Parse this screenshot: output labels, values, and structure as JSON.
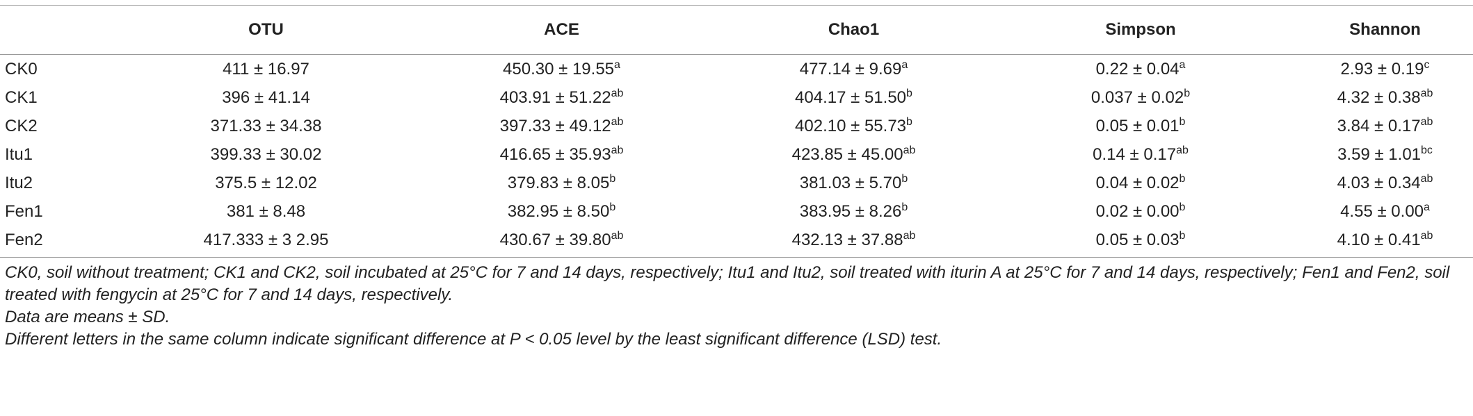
{
  "table": {
    "columns": [
      "OTU",
      "ACE",
      "Chao1",
      "Simpson",
      "Shannon"
    ],
    "rows": [
      {
        "label": "CK0",
        "cells": [
          "411 ± 16.97",
          {
            "text": "450.30 ± 19.55",
            "sup": "a"
          },
          {
            "text": "477.14 ± 9.69",
            "sup": "a"
          },
          {
            "text": "0.22 ± 0.04",
            "sup": "a"
          },
          {
            "text": "2.93 ± 0.19",
            "sup": "c"
          }
        ]
      },
      {
        "label": "CK1",
        "cells": [
          "396 ± 41.14",
          {
            "text": "403.91 ± 51.22",
            "sup": "ab"
          },
          {
            "text": "404.17 ± 51.50",
            "sup": "b"
          },
          {
            "text": "0.037 ± 0.02",
            "sup": "b"
          },
          {
            "text": "4.32 ± 0.38",
            "sup": "ab"
          }
        ]
      },
      {
        "label": "CK2",
        "cells": [
          "371.33 ± 34.38",
          {
            "text": "397.33 ± 49.12",
            "sup": "ab"
          },
          {
            "text": "402.10 ± 55.73",
            "sup": "b"
          },
          {
            "text": "0.05 ± 0.01",
            "sup": "b"
          },
          {
            "text": "3.84 ± 0.17",
            "sup": "ab"
          }
        ]
      },
      {
        "label": "Itu1",
        "cells": [
          "399.33 ± 30.02",
          {
            "text": "416.65 ± 35.93",
            "sup": "ab"
          },
          {
            "text": "423.85 ± 45.00",
            "sup": "ab"
          },
          {
            "text": "0.14 ± 0.17",
            "sup": "ab"
          },
          {
            "text": "3.59 ± 1.01",
            "sup": "bc"
          }
        ]
      },
      {
        "label": "Itu2",
        "cells": [
          "375.5 ± 12.02",
          {
            "text": "379.83 ± 8.05",
            "sup": "b"
          },
          {
            "text": "381.03 ± 5.70",
            "sup": "b"
          },
          {
            "text": "0.04 ± 0.02",
            "sup": "b"
          },
          {
            "text": "4.03 ± 0.34",
            "sup": "ab"
          }
        ]
      },
      {
        "label": "Fen1",
        "cells": [
          "381 ± 8.48",
          {
            "text": "382.95 ± 8.50",
            "sup": "b"
          },
          {
            "text": "383.95 ± 8.26",
            "sup": "b"
          },
          {
            "text": "0.02 ± 0.00",
            "sup": "b"
          },
          {
            "text": "4.55 ± 0.00",
            "sup": "a"
          }
        ]
      },
      {
        "label": "Fen2",
        "cells": [
          "417.333 ± 3 2.95",
          {
            "text": "430.67 ± 39.80",
            "sup": "ab"
          },
          {
            "text": "432.13 ± 37.88",
            "sup": "ab"
          },
          {
            "text": "0.05 ± 0.03",
            "sup": "b"
          },
          {
            "text": "4.10 ± 0.41",
            "sup": "ab"
          }
        ]
      }
    ]
  },
  "footnotes": [
    "CK0, soil without treatment; CK1 and CK2, soil incubated at 25°C for 7 and 14 days, respectively; Itu1 and Itu2, soil treated with iturin A at 25°C for 7 and 14 days, respectively; Fen1 and Fen2, soil treated with fengycin at 25°C for 7 and 14 days, respectively.",
    "Data are means ± SD.",
    "Different letters in the same column indicate significant difference at P < 0.05 level by the least significant difference (LSD) test."
  ]
}
